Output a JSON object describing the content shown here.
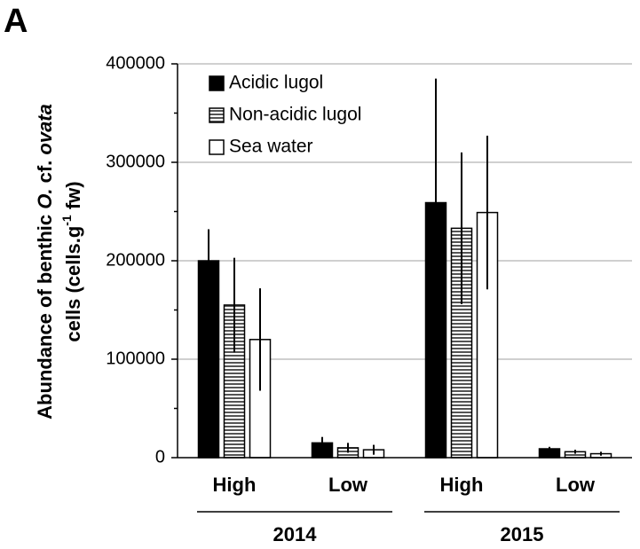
{
  "panel_label": "A",
  "chart_data": {
    "type": "bar",
    "ylabel_line1": [
      "Abundance of  benthic ",
      "O.",
      " cf. ",
      "ovata"
    ],
    "ylabel_line2": [
      "cells (cells.g",
      "-1",
      " fw)"
    ],
    "categories": [
      "High",
      "Low",
      "High",
      "Low"
    ],
    "group_labels": [
      "2014",
      "2015"
    ],
    "ylim": [
      0,
      400000
    ],
    "yticks": [
      0,
      100000,
      200000,
      300000,
      400000
    ],
    "minor_yticks": [
      50000,
      150000,
      250000,
      350000
    ],
    "grid": true,
    "legend": "upper-left",
    "series": [
      {
        "name": "Acidic lugol",
        "color": "#000000",
        "pattern": "solid",
        "values": [
          200000,
          15000,
          259000,
          9000
        ],
        "errors": [
          32000,
          6000,
          126000,
          2000
        ]
      },
      {
        "name": "Non-acidic lugol",
        "color": "#808080",
        "pattern": "horizontal-lines",
        "values": [
          155000,
          10000,
          233000,
          6000
        ],
        "errors": [
          48000,
          5000,
          77000,
          2000
        ]
      },
      {
        "name": "Sea water",
        "color": "#ffffff",
        "pattern": "solid",
        "values": [
          120000,
          8000,
          249000,
          4000
        ],
        "errors": [
          52000,
          5000,
          78000,
          2000
        ]
      }
    ]
  }
}
